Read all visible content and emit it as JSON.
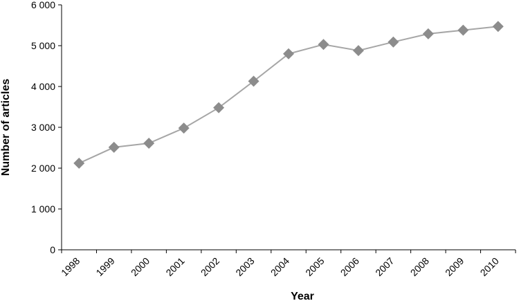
{
  "chart_data": {
    "type": "line",
    "title": "",
    "xlabel": "Year",
    "ylabel": "Number of articles",
    "categories": [
      "1998",
      "1999",
      "2000",
      "2001",
      "2002",
      "2003",
      "2004",
      "2005",
      "2006",
      "2007",
      "2008",
      "2009",
      "2010"
    ],
    "series": [
      {
        "values": [
          2120,
          2510,
          2610,
          2980,
          3480,
          4130,
          4800,
          5030,
          4880,
          5090,
          5290,
          5380,
          5470
        ],
        "color": "#a6a6a6",
        "marker": "diamond",
        "marker_color": "#8c8c8c"
      }
    ],
    "ylim": [
      0,
      6000
    ],
    "y_ticks": [
      0,
      1000,
      2000,
      3000,
      4000,
      5000,
      6000
    ],
    "y_tick_labels": [
      "0",
      "1 000",
      "2 000",
      "3 000",
      "4 000",
      "5 000",
      "6 000"
    ],
    "grid": false,
    "legend": "none"
  }
}
